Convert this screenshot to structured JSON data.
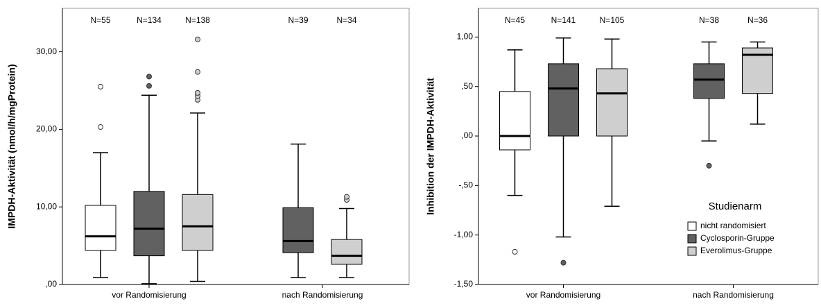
{
  "chart_data": [
    {
      "type": "box",
      "y_label": "IMPDH-Aktivität (nmol/h/mgProtein)",
      "categories": [
        "vor Randomisierung",
        "nach Randomisierung"
      ],
      "ylim": [
        0,
        35.6
      ],
      "yticks": [
        {
          "value": 0,
          "label": ",00"
        },
        {
          "value": 10,
          "label": "10,00"
        },
        {
          "value": 20,
          "label": "20,00"
        },
        {
          "value": 30,
          "label": "30,00"
        }
      ],
      "series": [
        {
          "color": "#ffffff",
          "n_labels": [
            "N=55",
            null
          ],
          "values": [
            {
              "min": 0.9,
              "q1": 4.4,
              "median": 6.2,
              "q3": 10.2,
              "max": 17.0,
              "outliers": [
                20.3,
                25.5
              ]
            },
            null
          ]
        },
        {
          "color": "#616161",
          "n_labels": [
            "N=134",
            "N=39"
          ],
          "values": [
            {
              "min": 0.1,
              "q1": 3.7,
              "median": 7.2,
              "q3": 12.0,
              "max": 24.4,
              "outliers": [
                25.6,
                26.8
              ]
            },
            {
              "min": 0.9,
              "q1": 4.1,
              "median": 5.6,
              "q3": 9.9,
              "max": 18.1,
              "outliers": []
            }
          ]
        },
        {
          "color": "#cfcfcf",
          "n_labels": [
            "N=138",
            "N=34"
          ],
          "values": [
            {
              "min": 0.4,
              "q1": 4.4,
              "median": 7.5,
              "q3": 11.6,
              "max": 22.1,
              "outliers": [
                23.8,
                24.3,
                24.7,
                27.4,
                31.6
              ]
            },
            {
              "min": 0.9,
              "q1": 2.6,
              "median": 3.7,
              "q3": 5.8,
              "max": 9.8,
              "outliers": [
                10.9,
                11.3
              ]
            }
          ]
        }
      ]
    },
    {
      "type": "box",
      "y_label": "Inhibition der IMPDH-Aktivität",
      "categories": [
        "vor Randomisierung",
        "nach Randomisierung"
      ],
      "ylim": [
        -1.5,
        1.29
      ],
      "yticks": [
        {
          "value": -1.5,
          "label": "-1,50"
        },
        {
          "value": -1,
          "label": "-1,00"
        },
        {
          "value": -0.5,
          "label": "-,50"
        },
        {
          "value": 0,
          "label": ",00"
        },
        {
          "value": 0.5,
          "label": ",50"
        },
        {
          "value": 1,
          "label": "1,00"
        }
      ],
      "legend": {
        "title": "Studienarm",
        "position": "lower right"
      },
      "series": [
        {
          "name": "nicht randomisiert",
          "color": "#ffffff",
          "n_labels": [
            "N=45",
            null
          ],
          "values": [
            {
              "min": -0.6,
              "q1": -0.14,
              "median": 0.0,
              "q3": 0.45,
              "max": 0.87,
              "outliers": [
                -1.17
              ]
            },
            null
          ]
        },
        {
          "name": "Cyclosporin-Gruppe",
          "color": "#616161",
          "n_labels": [
            "N=141",
            "N=38"
          ],
          "values": [
            {
              "min": -1.02,
              "q1": 0.0,
              "median": 0.48,
              "q3": 0.73,
              "max": 0.99,
              "outliers": [
                -1.28
              ]
            },
            {
              "min": -0.05,
              "q1": 0.38,
              "median": 0.57,
              "q3": 0.73,
              "max": 0.95,
              "outliers": [
                -0.3
              ]
            }
          ]
        },
        {
          "name": "Everolimus-Gruppe",
          "color": "#cfcfcf",
          "n_labels": [
            "N=105",
            "N=36"
          ],
          "values": [
            {
              "min": -0.71,
              "q1": 0.0,
              "median": 0.43,
              "q3": 0.68,
              "max": 0.98,
              "outliers": []
            },
            {
              "min": 0.12,
              "q1": 0.43,
              "median": 0.82,
              "q3": 0.89,
              "max": 0.95,
              "outliers": []
            }
          ]
        }
      ]
    }
  ]
}
